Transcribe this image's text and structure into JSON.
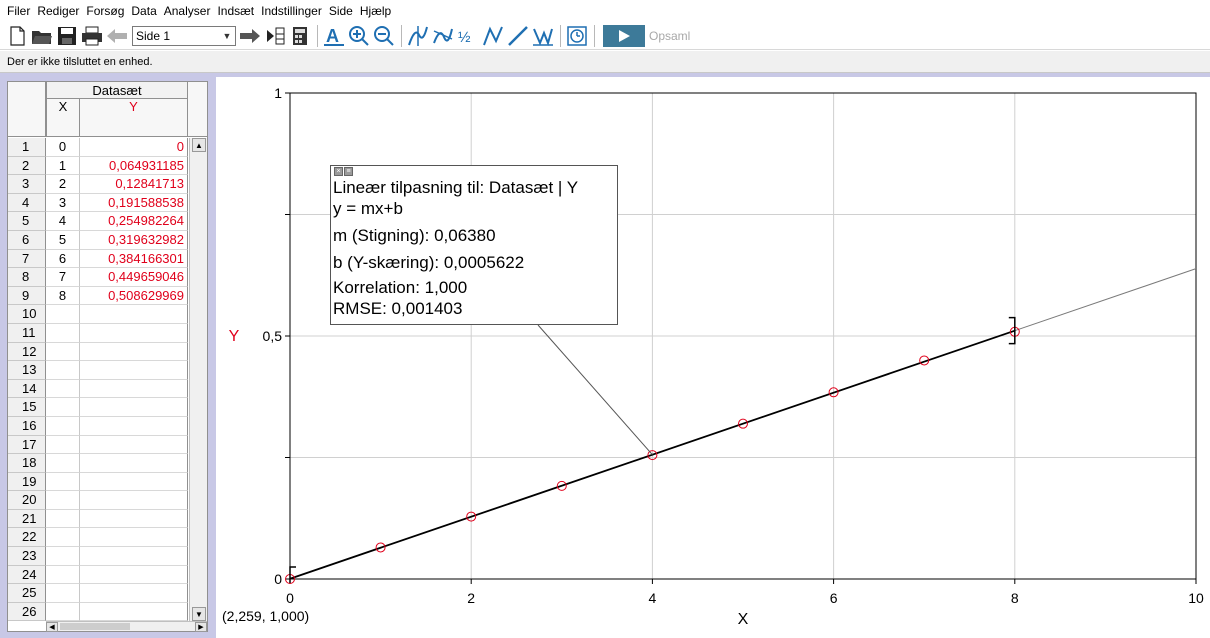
{
  "menu": [
    "Filer",
    "Rediger",
    "Forsøg",
    "Data",
    "Analyser",
    "Indsæt",
    "Indstillinger",
    "Side",
    "Hjælp"
  ],
  "toolbar": {
    "page_selector": "Side 1",
    "collect_label": "Opsaml"
  },
  "status_message": "Der er ikke tilsluttet en enhed.",
  "table": {
    "dataset_name": "Datasæt",
    "x_header": "X",
    "y_header": "Y",
    "row_numbers": [
      "1",
      "2",
      "3",
      "4",
      "5",
      "6",
      "7",
      "8",
      "9",
      "10",
      "11",
      "12",
      "13",
      "14",
      "15",
      "16",
      "17",
      "18",
      "19",
      "20",
      "21",
      "22",
      "23",
      "24",
      "25",
      "26"
    ],
    "x_values": [
      "0",
      "1",
      "2",
      "3",
      "4",
      "5",
      "6",
      "7",
      "8"
    ],
    "y_values": [
      "0",
      "0,064931185",
      "0,12841713",
      "0,191588538",
      "0,254982264",
      "0,319632982",
      "0,384166301",
      "0,449659046",
      "0,508629969"
    ]
  },
  "graph": {
    "x_label": "X",
    "y_label": "Y",
    "coordinate_readout": "(2,259, 1,000)",
    "x_ticks": [
      "0",
      "2",
      "4",
      "6",
      "8",
      "10"
    ],
    "y_ticks": [
      "0",
      "0,5",
      "1"
    ]
  },
  "fit_box": {
    "title": "Lineær tilpasning til: Datasæt | Y",
    "equation": "y = mx+b",
    "slope": "m (Stigning): 0,06380",
    "intercept": "b (Y-skæring): 0,0005622",
    "correlation": "Korrelation: 1,000",
    "rmse": "RMSE: 0,001403"
  },
  "chart_data": {
    "type": "scatter",
    "xlabel": "X",
    "ylabel": "Y",
    "xlim": [
      0,
      10
    ],
    "ylim": [
      0,
      1
    ],
    "grid": true,
    "x": [
      0,
      1,
      2,
      3,
      4,
      5,
      6,
      7,
      8
    ],
    "y": [
      0,
      0.064931185,
      0.12841713,
      0.191588538,
      0.254982264,
      0.319632982,
      0.384166301,
      0.449659046,
      0.508629969
    ],
    "fit": {
      "m": 0.0638,
      "b": 0.0005622
    },
    "colors": {
      "points": "#e0001b",
      "fit_line": "#000000",
      "extension_line": "#7a7a7a"
    }
  }
}
